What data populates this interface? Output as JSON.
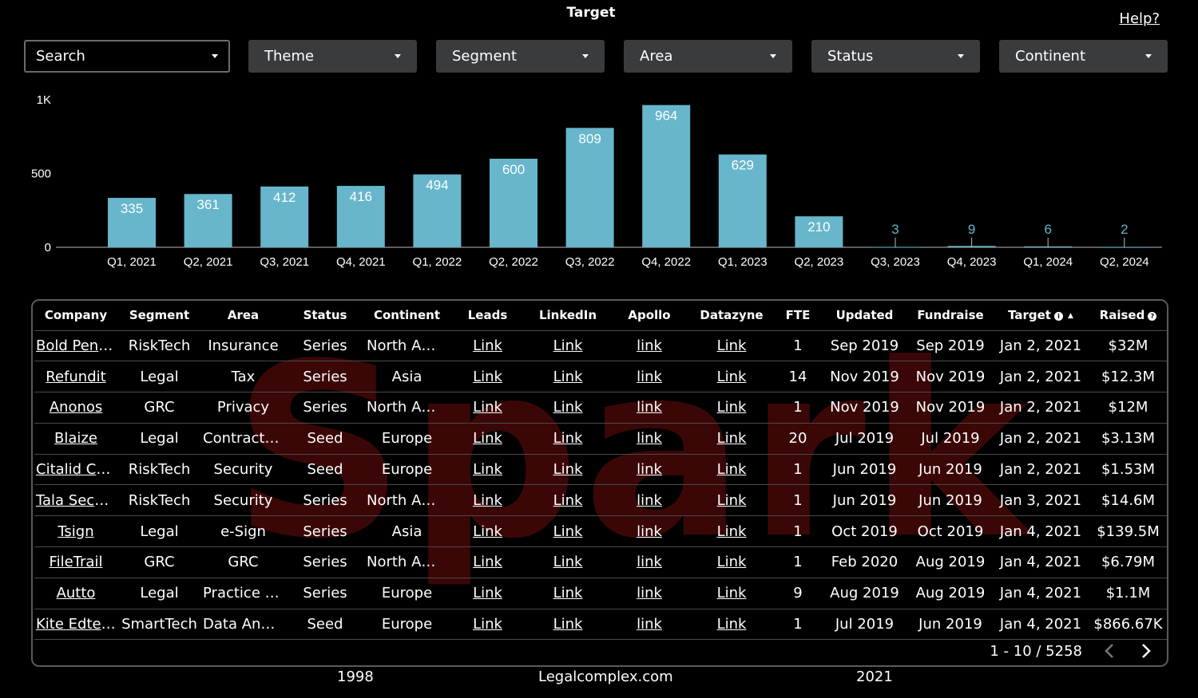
{
  "title": "Target",
  "help_label": "Help?",
  "filters": [
    {
      "label": "Search",
      "name": "search-dropdown"
    },
    {
      "label": "Theme",
      "name": "theme-dropdown"
    },
    {
      "label": "Segment",
      "name": "segment-dropdown"
    },
    {
      "label": "Area",
      "name": "area-dropdown"
    },
    {
      "label": "Status",
      "name": "status-dropdown"
    },
    {
      "label": "Continent",
      "name": "continent-dropdown"
    }
  ],
  "chart_data": {
    "type": "bar",
    "categories": [
      "Q1, 2021",
      "Q2, 2021",
      "Q3, 2021",
      "Q4, 2021",
      "Q1, 2022",
      "Q2, 2022",
      "Q3, 2022",
      "Q4, 2022",
      "Q1, 2023",
      "Q2, 2023",
      "Q3, 2023",
      "Q4, 2023",
      "Q1, 2024",
      "Q2, 2024"
    ],
    "values": [
      335,
      361,
      412,
      416,
      494,
      600,
      809,
      964,
      629,
      210,
      3,
      9,
      6,
      2
    ],
    "yticks": [
      {
        "value": 0,
        "label": "0"
      },
      {
        "value": 500,
        "label": "500"
      },
      {
        "value": 1000,
        "label": "1K"
      }
    ],
    "ylim": [
      0,
      1000
    ],
    "bar_color": "#67b6cb",
    "label_color_inside": "#ffffff",
    "label_color_outside": "#67b6cb",
    "grid": false
  },
  "table": {
    "columns": [
      "Company",
      "Segment",
      "Area",
      "Status",
      "Continent",
      "Leads",
      "LinkedIn",
      "Apollo",
      "Datazyne",
      "FTE",
      "Updated",
      "Fundraise",
      "Target",
      "Raised"
    ],
    "rows": [
      [
        "Bold Penguin",
        "RiskTech",
        "Insurance",
        "Series",
        "North America",
        "Link",
        "Link",
        "link",
        "Link",
        "1",
        "Sep 2019",
        "Sep 2019",
        "Jan 2, 2021",
        "$32M"
      ],
      [
        "Refundit",
        "Legal",
        "Tax",
        "Series",
        "Asia",
        "Link",
        "Link",
        "link",
        "Link",
        "14",
        "Nov 2019",
        "Nov 2019",
        "Jan 2, 2021",
        "$12.3M"
      ],
      [
        "Anonos",
        "GRC",
        "Privacy",
        "Series",
        "North America",
        "Link",
        "Link",
        "link",
        "Link",
        "1",
        "Nov 2019",
        "Nov 2019",
        "Jan 2, 2021",
        "$12M"
      ],
      [
        "Blaize",
        "Legal",
        "Contract Management",
        "Seed",
        "Europe",
        "Link",
        "Link",
        "link",
        "Link",
        "20",
        "Jul 2019",
        "Jul 2019",
        "Jan 2, 2021",
        "$3.13M"
      ],
      [
        "Citalid Cybersecurity",
        "RiskTech",
        "Security",
        "Seed",
        "Europe",
        "Link",
        "Link",
        "link",
        "Link",
        "1",
        "Jun 2019",
        "Jun 2019",
        "Jan 2, 2021",
        "$1.53M"
      ],
      [
        "Tala Security",
        "RiskTech",
        "Security",
        "Series",
        "North America",
        "Link",
        "Link",
        "link",
        "Link",
        "1",
        "Jun 2019",
        "Jun 2019",
        "Jan 3, 2021",
        "$14.6M"
      ],
      [
        "Tsign",
        "Legal",
        "e-Sign",
        "Series",
        "Asia",
        "Link",
        "Link",
        "link",
        "Link",
        "1",
        "Oct 2019",
        "Oct 2019",
        "Jan 4, 2021",
        "$139.5M"
      ],
      [
        "FileTrail",
        "GRC",
        "GRC",
        "Series",
        "North America",
        "Link",
        "Link",
        "link",
        "Link",
        "1",
        "Feb 2020",
        "Aug 2019",
        "Jan 4, 2021",
        "$6.79M"
      ],
      [
        "Autto",
        "Legal",
        "Practice Management",
        "Series",
        "Europe",
        "Link",
        "Link",
        "link",
        "Link",
        "9",
        "Aug 2019",
        "Aug 2019",
        "Jan 4, 2021",
        "$1.1M"
      ],
      [
        "Kite Edtech",
        "SmartTech",
        "Data Analytics",
        "Seed",
        "Europe",
        "Link",
        "Link",
        "link",
        "Link",
        "1",
        "Jul 2019",
        "Jun 2019",
        "Jan 4, 2021",
        "$866.67K"
      ]
    ]
  },
  "watermark_text": "Spark",
  "pagination": {
    "range": "1 - 10 / 5258"
  },
  "footer": {
    "left": "1998",
    "center": "Legalcomplex.com",
    "right": "2021"
  }
}
